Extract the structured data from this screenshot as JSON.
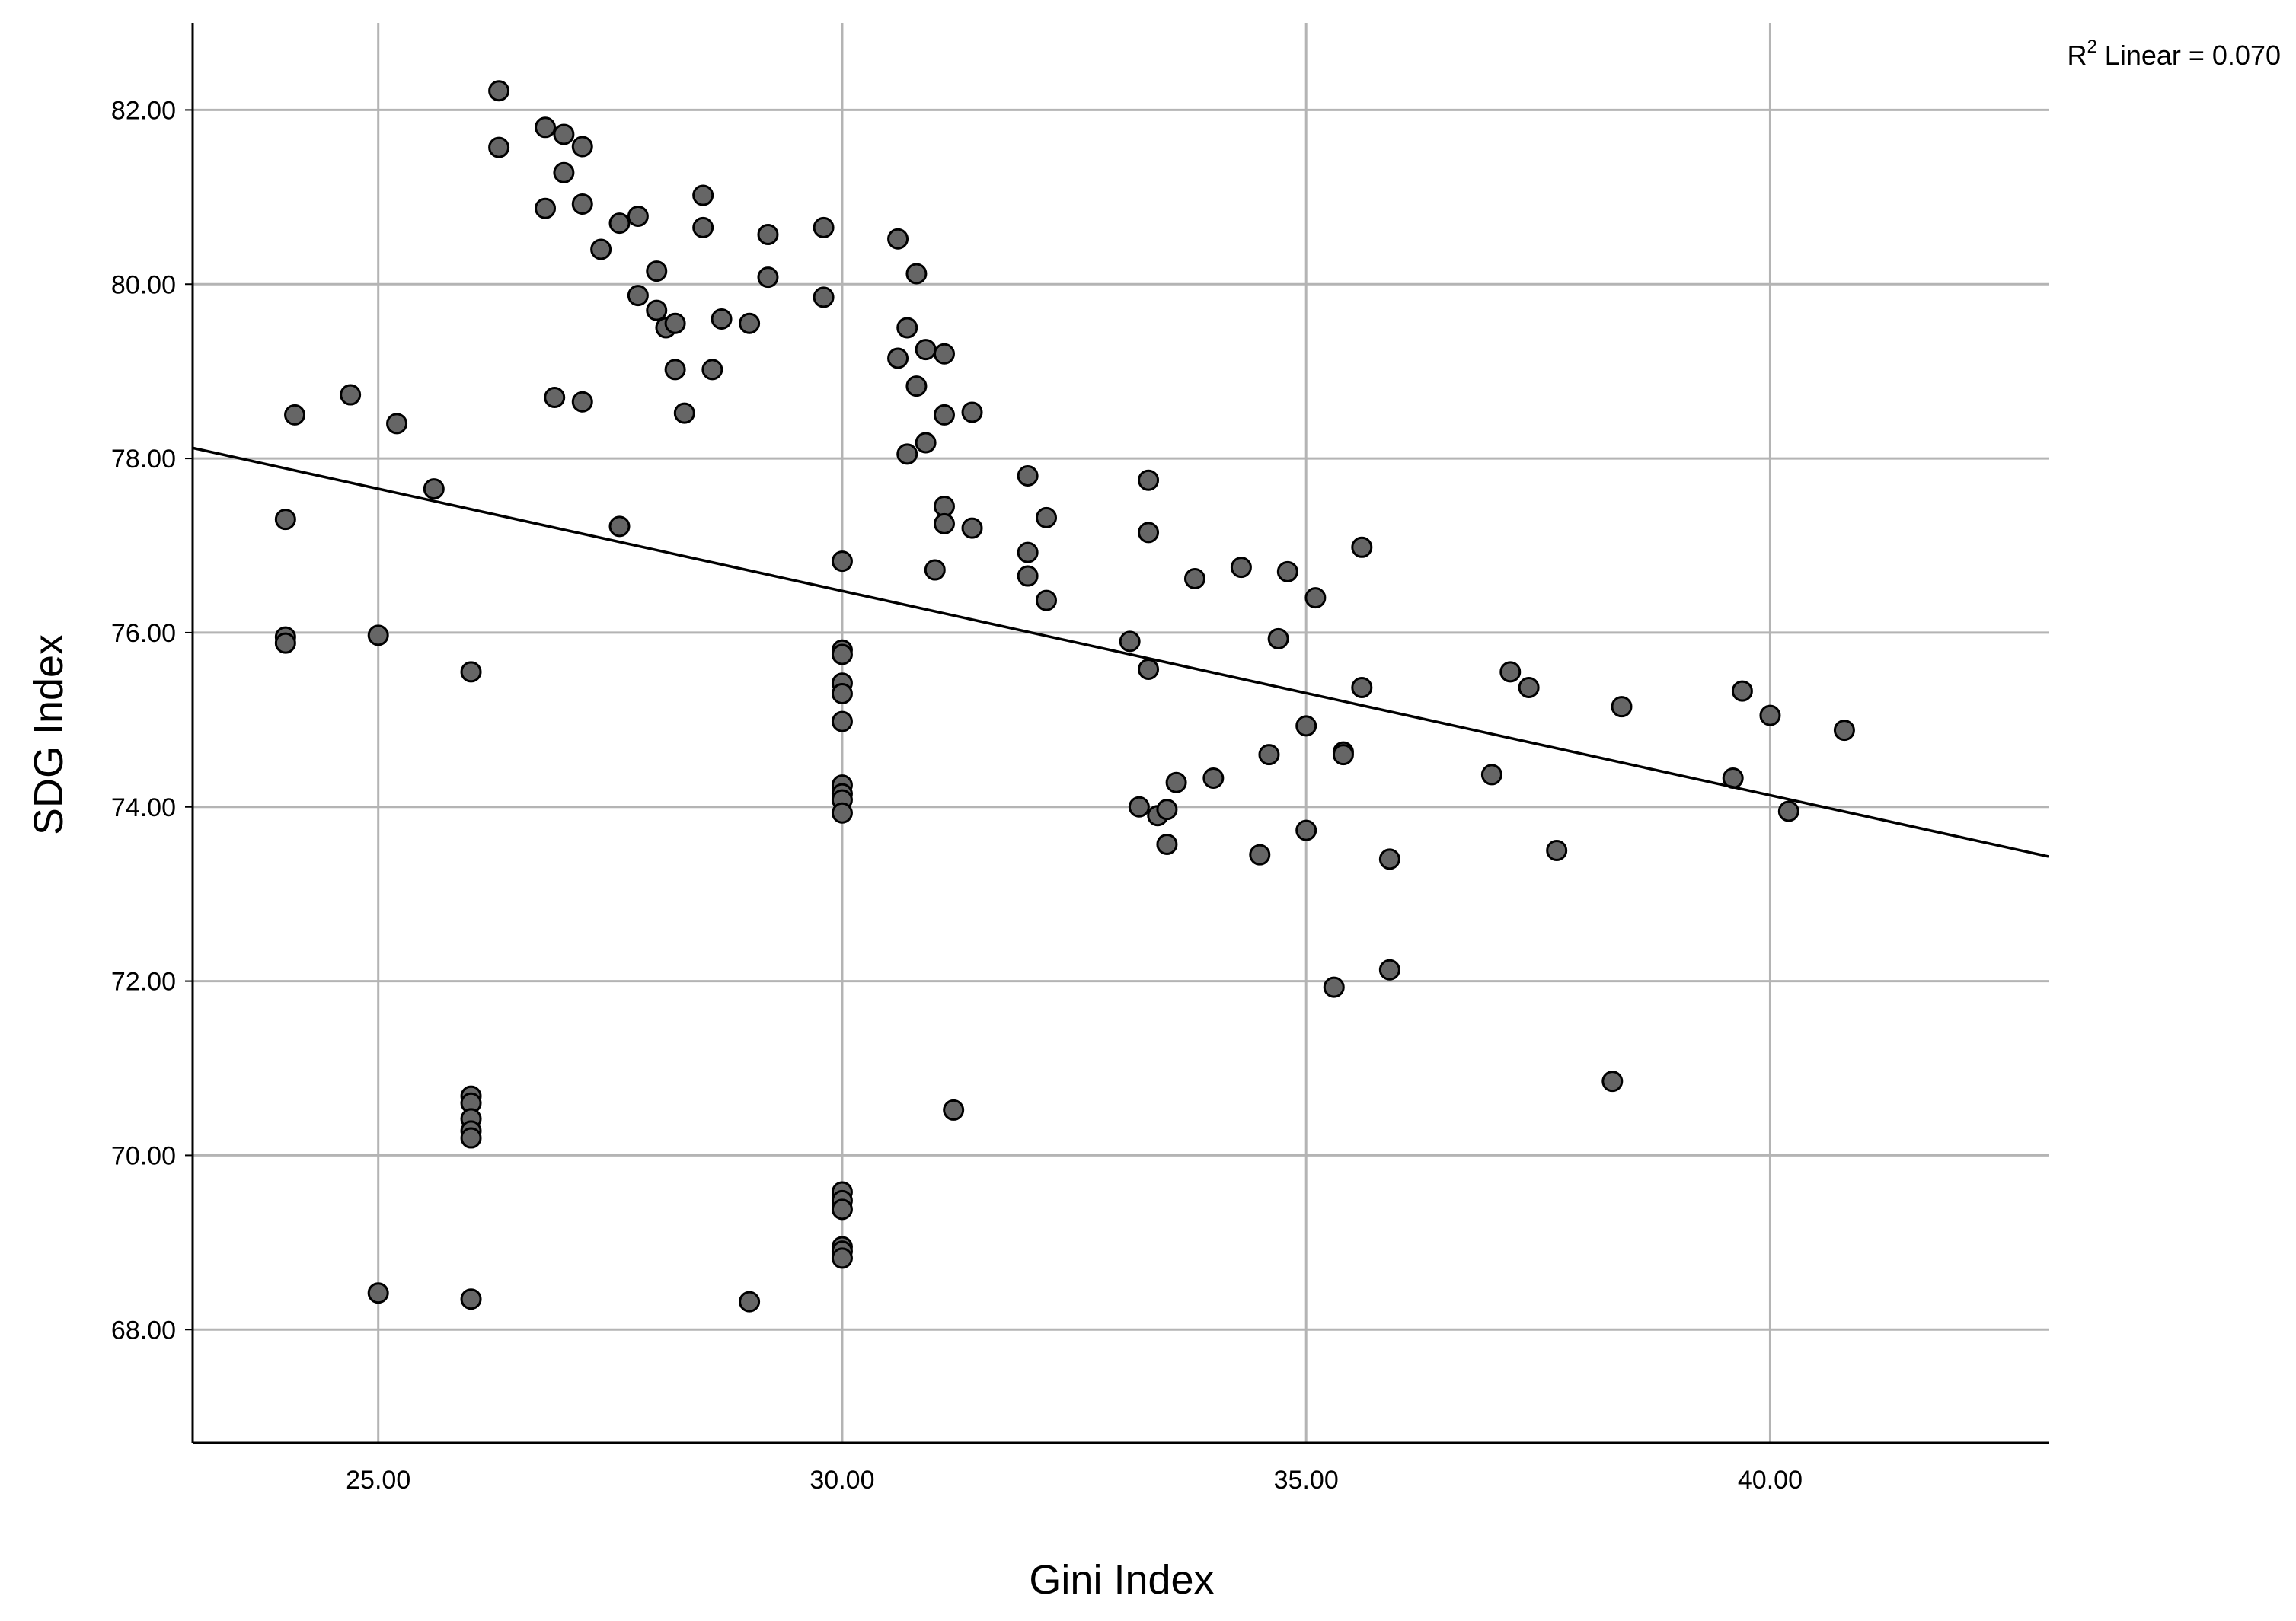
{
  "chart_data": {
    "type": "scatter",
    "title": "",
    "xlabel": "Gini Index",
    "ylabel": "SDG Index",
    "xlim": [
      23.0,
      43.0
    ],
    "ylim": [
      66.7,
      83.0
    ],
    "x_ticks": [
      25,
      30,
      35,
      40
    ],
    "x_tick_labels": [
      "25.00",
      "30.00",
      "35.00",
      "40.00"
    ],
    "y_ticks": [
      68,
      70,
      72,
      74,
      76,
      78,
      80,
      82
    ],
    "y_tick_labels": [
      "68.00",
      "70.00",
      "72.00",
      "74.00",
      "76.00",
      "78.00",
      "80.00",
      "82.00"
    ],
    "grid": true,
    "fit_line": {
      "label_prefix": "R",
      "label_sup": "2",
      "label_suffix": " Linear = 0.070",
      "type": "linear",
      "points": [
        [
          23.0,
          78.12
        ],
        [
          43.0,
          73.43
        ]
      ]
    },
    "marker_fill": "#666666",
    "marker_stroke": "#000000",
    "line_color": "#000000",
    "grid_color": "#b4b4b4",
    "points": [
      [
        24.0,
        77.3
      ],
      [
        24.0,
        75.95
      ],
      [
        24.0,
        75.88
      ],
      [
        24.1,
        78.5
      ],
      [
        24.7,
        78.73
      ],
      [
        25.0,
        75.97
      ],
      [
        25.0,
        68.42
      ],
      [
        25.2,
        78.4
      ],
      [
        25.6,
        77.65
      ],
      [
        26.0,
        75.55
      ],
      [
        26.0,
        70.68
      ],
      [
        26.0,
        70.6
      ],
      [
        26.0,
        70.42
      ],
      [
        26.0,
        70.28
      ],
      [
        26.0,
        70.2
      ],
      [
        26.0,
        68.35
      ],
      [
        26.3,
        82.22
      ],
      [
        26.3,
        81.57
      ],
      [
        26.8,
        81.8
      ],
      [
        26.8,
        80.87
      ],
      [
        26.9,
        78.7
      ],
      [
        27.0,
        81.72
      ],
      [
        27.0,
        81.28
      ],
      [
        27.2,
        81.58
      ],
      [
        27.2,
        80.92
      ],
      [
        27.2,
        78.65
      ],
      [
        27.4,
        80.4
      ],
      [
        27.6,
        80.7
      ],
      [
        27.6,
        77.22
      ],
      [
        27.8,
        80.78
      ],
      [
        27.8,
        79.87
      ],
      [
        28.0,
        80.15
      ],
      [
        28.0,
        79.7
      ],
      [
        28.1,
        79.5
      ],
      [
        28.2,
        79.55
      ],
      [
        28.2,
        79.02
      ],
      [
        28.3,
        78.52
      ],
      [
        28.5,
        81.02
      ],
      [
        28.5,
        80.65
      ],
      [
        28.6,
        79.02
      ],
      [
        28.7,
        79.6
      ],
      [
        29.0,
        79.55
      ],
      [
        29.0,
        68.32
      ],
      [
        29.2,
        80.57
      ],
      [
        29.2,
        80.08
      ],
      [
        29.8,
        80.65
      ],
      [
        29.8,
        79.85
      ],
      [
        30.0,
        76.82
      ],
      [
        30.0,
        75.8
      ],
      [
        30.0,
        75.75
      ],
      [
        30.0,
        75.42
      ],
      [
        30.0,
        75.3
      ],
      [
        30.0,
        74.98
      ],
      [
        30.0,
        74.25
      ],
      [
        30.0,
        74.15
      ],
      [
        30.0,
        74.08
      ],
      [
        30.0,
        73.93
      ],
      [
        30.0,
        69.58
      ],
      [
        30.0,
        69.48
      ],
      [
        30.0,
        69.38
      ],
      [
        30.0,
        68.95
      ],
      [
        30.0,
        68.9
      ],
      [
        30.0,
        68.82
      ],
      [
        30.6,
        80.52
      ],
      [
        30.6,
        79.15
      ],
      [
        30.7,
        79.5
      ],
      [
        30.7,
        78.05
      ],
      [
        30.8,
        80.12
      ],
      [
        30.8,
        78.83
      ],
      [
        30.9,
        79.25
      ],
      [
        30.9,
        78.18
      ],
      [
        31.0,
        76.72
      ],
      [
        31.1,
        79.2
      ],
      [
        31.1,
        78.5
      ],
      [
        31.1,
        77.45
      ],
      [
        31.1,
        77.25
      ],
      [
        31.2,
        70.52
      ],
      [
        31.4,
        78.53
      ],
      [
        31.4,
        77.2
      ],
      [
        32.0,
        77.8
      ],
      [
        32.0,
        76.92
      ],
      [
        32.0,
        76.65
      ],
      [
        32.2,
        77.32
      ],
      [
        32.2,
        76.37
      ],
      [
        33.1,
        75.9
      ],
      [
        33.2,
        74.0
      ],
      [
        33.3,
        77.75
      ],
      [
        33.3,
        77.15
      ],
      [
        33.3,
        75.58
      ],
      [
        33.4,
        73.9
      ],
      [
        33.5,
        73.97
      ],
      [
        33.5,
        73.57
      ],
      [
        33.6,
        74.28
      ],
      [
        33.8,
        76.62
      ],
      [
        34.0,
        74.33
      ],
      [
        34.3,
        76.75
      ],
      [
        34.5,
        73.45
      ],
      [
        34.6,
        74.6
      ],
      [
        34.7,
        75.93
      ],
      [
        34.8,
        76.7
      ],
      [
        35.0,
        74.93
      ],
      [
        35.0,
        73.73
      ],
      [
        35.1,
        76.4
      ],
      [
        35.3,
        71.93
      ],
      [
        35.4,
        74.63
      ],
      [
        35.4,
        74.6
      ],
      [
        35.6,
        76.98
      ],
      [
        35.6,
        75.37
      ],
      [
        35.9,
        73.4
      ],
      [
        35.9,
        72.13
      ],
      [
        37.0,
        74.37
      ],
      [
        37.2,
        75.55
      ],
      [
        37.4,
        75.37
      ],
      [
        37.7,
        73.5
      ],
      [
        38.3,
        70.85
      ],
      [
        38.4,
        75.15
      ],
      [
        39.6,
        74.33
      ],
      [
        39.7,
        75.33
      ],
      [
        40.0,
        75.05
      ],
      [
        40.2,
        73.95
      ],
      [
        40.8,
        74.88
      ]
    ]
  }
}
